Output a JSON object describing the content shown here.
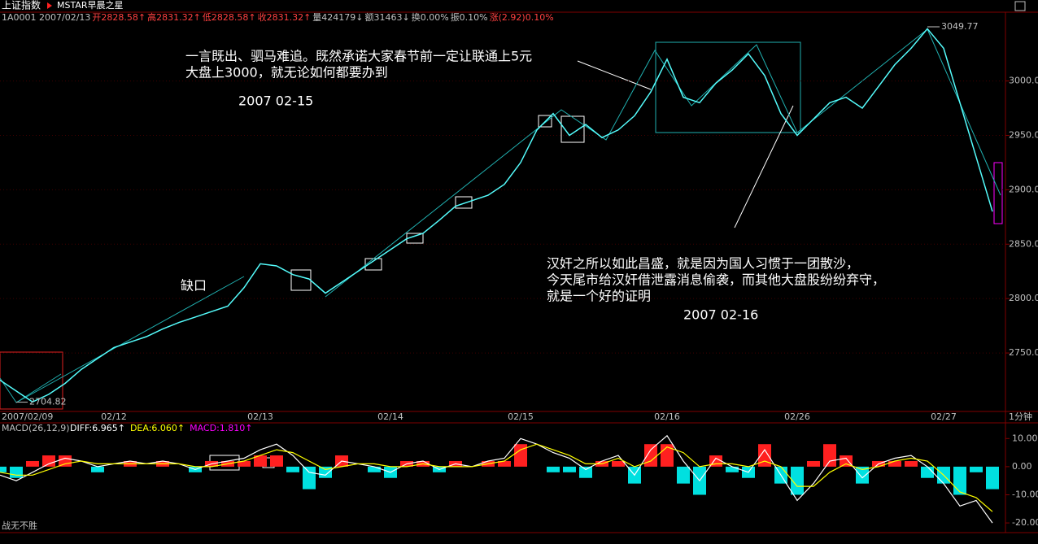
{
  "header": {
    "title": "上证指数",
    "indicator": "MSTAR早晨之星",
    "info": [
      {
        "text": "1A0001 2007/02/13",
        "color": "#c0c0c0"
      },
      {
        "text": "开2828.58↑",
        "color": "#ff4040"
      },
      {
        "text": "高2831.32↑",
        "color": "#ff4040"
      },
      {
        "text": "低2828.58↑",
        "color": "#ff4040"
      },
      {
        "text": "收2831.32↑",
        "color": "#ff4040"
      },
      {
        "text": "量424179↓",
        "color": "#c0c0c0"
      },
      {
        "text": "额31463↓",
        "color": "#c0c0c0"
      },
      {
        "text": "换0.00%",
        "color": "#c0c0c0"
      },
      {
        "text": "振0.10%",
        "color": "#c0c0c0"
      },
      {
        "text": "涨(2.92)0.10%",
        "color": "#ff4040"
      }
    ]
  },
  "chart_data": [
    {
      "type": "line",
      "categories": [
        null,
        "2007/02/09",
        null,
        null,
        null,
        null,
        null,
        "02/12",
        null,
        null,
        null,
        null,
        null,
        null,
        null,
        null,
        "02/13",
        null,
        null,
        null,
        null,
        null,
        null,
        null,
        "02/14",
        null,
        null,
        null,
        null,
        null,
        null,
        null,
        "02/15",
        null,
        null,
        null,
        null,
        null,
        null,
        null,
        null,
        "02/16",
        null,
        null,
        null,
        null,
        null,
        null,
        null,
        "02/26",
        null,
        null,
        null,
        null,
        null,
        null,
        null,
        null,
        "02/27",
        null,
        null,
        null
      ],
      "series": [
        {
          "color": "#54fcfc",
          "values": [
            2725,
            2715,
            2705,
            2712,
            2722,
            2735,
            2745,
            2755,
            2760,
            2765,
            2772,
            2778,
            2783,
            2788,
            2793,
            2810,
            2832,
            2830,
            2822,
            2818,
            2805,
            2815,
            2825,
            2835,
            2845,
            2855,
            2860,
            2872,
            2885,
            2890,
            2895,
            2905,
            2925,
            2955,
            2970,
            2950,
            2960,
            2948,
            2955,
            2968,
            2990,
            3020,
            2985,
            2980,
            2998,
            3010,
            3025,
            3005,
            2970,
            2950,
            2965,
            2980,
            2985,
            2975,
            2995,
            3015,
            3030,
            3048,
            3030,
            2980,
            2930,
            2880
          ]
        }
      ],
      "ylim": [
        2697,
        3052
      ],
      "yticks": [
        {
          "value": 2750,
          "label": "2750.00"
        },
        {
          "value": 2800,
          "label": "2800.00"
        },
        {
          "value": 2850,
          "label": "2850.00"
        },
        {
          "value": 2900,
          "label": "2900.00"
        },
        {
          "value": 2950,
          "label": "2950.00"
        },
        {
          "value": 3000,
          "label": "3000.00"
        }
      ],
      "high": 3049.77,
      "low": 2704.82,
      "period": "1分钟",
      "annotations": [
        "一言既出、驷马难追。既然承诺大家春节前一定让联通上5元",
        "大盘上3000，就无论如何都要办到",
        "2007 02-15",
        "缺口",
        "汉奸之所以如此昌盛，就是因为国人习惯于一团散沙，",
        "今天尾市给汉奸借泄露消息偷袭，而其他大盘股纷纷弃守，",
        "就是一个好的证明",
        "2007 02-16"
      ]
    },
    {
      "type": "macd",
      "title": "MACD(26,12,9)",
      "series": [
        {
          "name": "DIFF:6.965↑",
          "color": "#ffffff",
          "values": [
            -3,
            -5,
            -2,
            1,
            3,
            2,
            0,
            1,
            2,
            1,
            2,
            1,
            -1,
            1,
            2,
            3,
            6,
            8,
            4,
            -2,
            -3,
            2,
            1,
            0,
            -2,
            1,
            2,
            -1,
            1,
            0,
            2,
            3,
            10,
            8,
            5,
            3,
            -1,
            2,
            4,
            -3,
            6,
            11,
            2,
            -5,
            3,
            0,
            -2,
            6,
            -3,
            -12,
            -6,
            2,
            3,
            -4,
            1,
            3,
            4,
            0,
            -6,
            -14,
            -12,
            -20
          ]
        },
        {
          "name": "DEA:6.060↑",
          "color": "#ffff00",
          "values": [
            -2,
            -3,
            -3,
            -1,
            1,
            2,
            1,
            1,
            1,
            1,
            1,
            1,
            0,
            0,
            1,
            2,
            4,
            6,
            5,
            2,
            -1,
            0,
            1,
            1,
            0,
            0,
            1,
            0,
            0,
            0,
            1,
            2,
            6,
            8,
            6,
            4,
            1,
            1,
            3,
            0,
            2,
            7,
            5,
            0,
            1,
            1,
            0,
            2,
            0,
            -7,
            -7,
            -2,
            1,
            -1,
            0,
            2,
            3,
            2,
            -3,
            -9,
            -11,
            -16
          ]
        },
        {
          "name": "MACD:1.810↑",
          "color": "#ff00ff",
          "values": [
            -2,
            -4,
            2,
            4,
            4,
            0,
            -2,
            0,
            2,
            0,
            2,
            0,
            -2,
            2,
            2,
            2,
            4,
            4,
            -2,
            -8,
            -4,
            4,
            0,
            -2,
            -4,
            2,
            2,
            -2,
            2,
            0,
            2,
            2,
            8,
            0,
            -2,
            -2,
            -4,
            2,
            2,
            -6,
            8,
            8,
            -6,
            -10,
            4,
            -2,
            -4,
            8,
            -6,
            -10,
            2,
            8,
            4,
            -6,
            2,
            2,
            2,
            -4,
            -6,
            -10,
            -2,
            -8
          ]
        }
      ],
      "positive_color": "#ff2020",
      "negative_color": "#00e0e0",
      "ylim": [
        -22,
        15
      ],
      "yticks": [
        {
          "value": 10,
          "label": "10.00"
        },
        {
          "value": 0,
          "label": "0.00"
        },
        {
          "value": -10,
          "label": "-10.00"
        },
        {
          "value": -20,
          "label": "-20.00"
        }
      ],
      "footer": "战无不胜"
    }
  ]
}
